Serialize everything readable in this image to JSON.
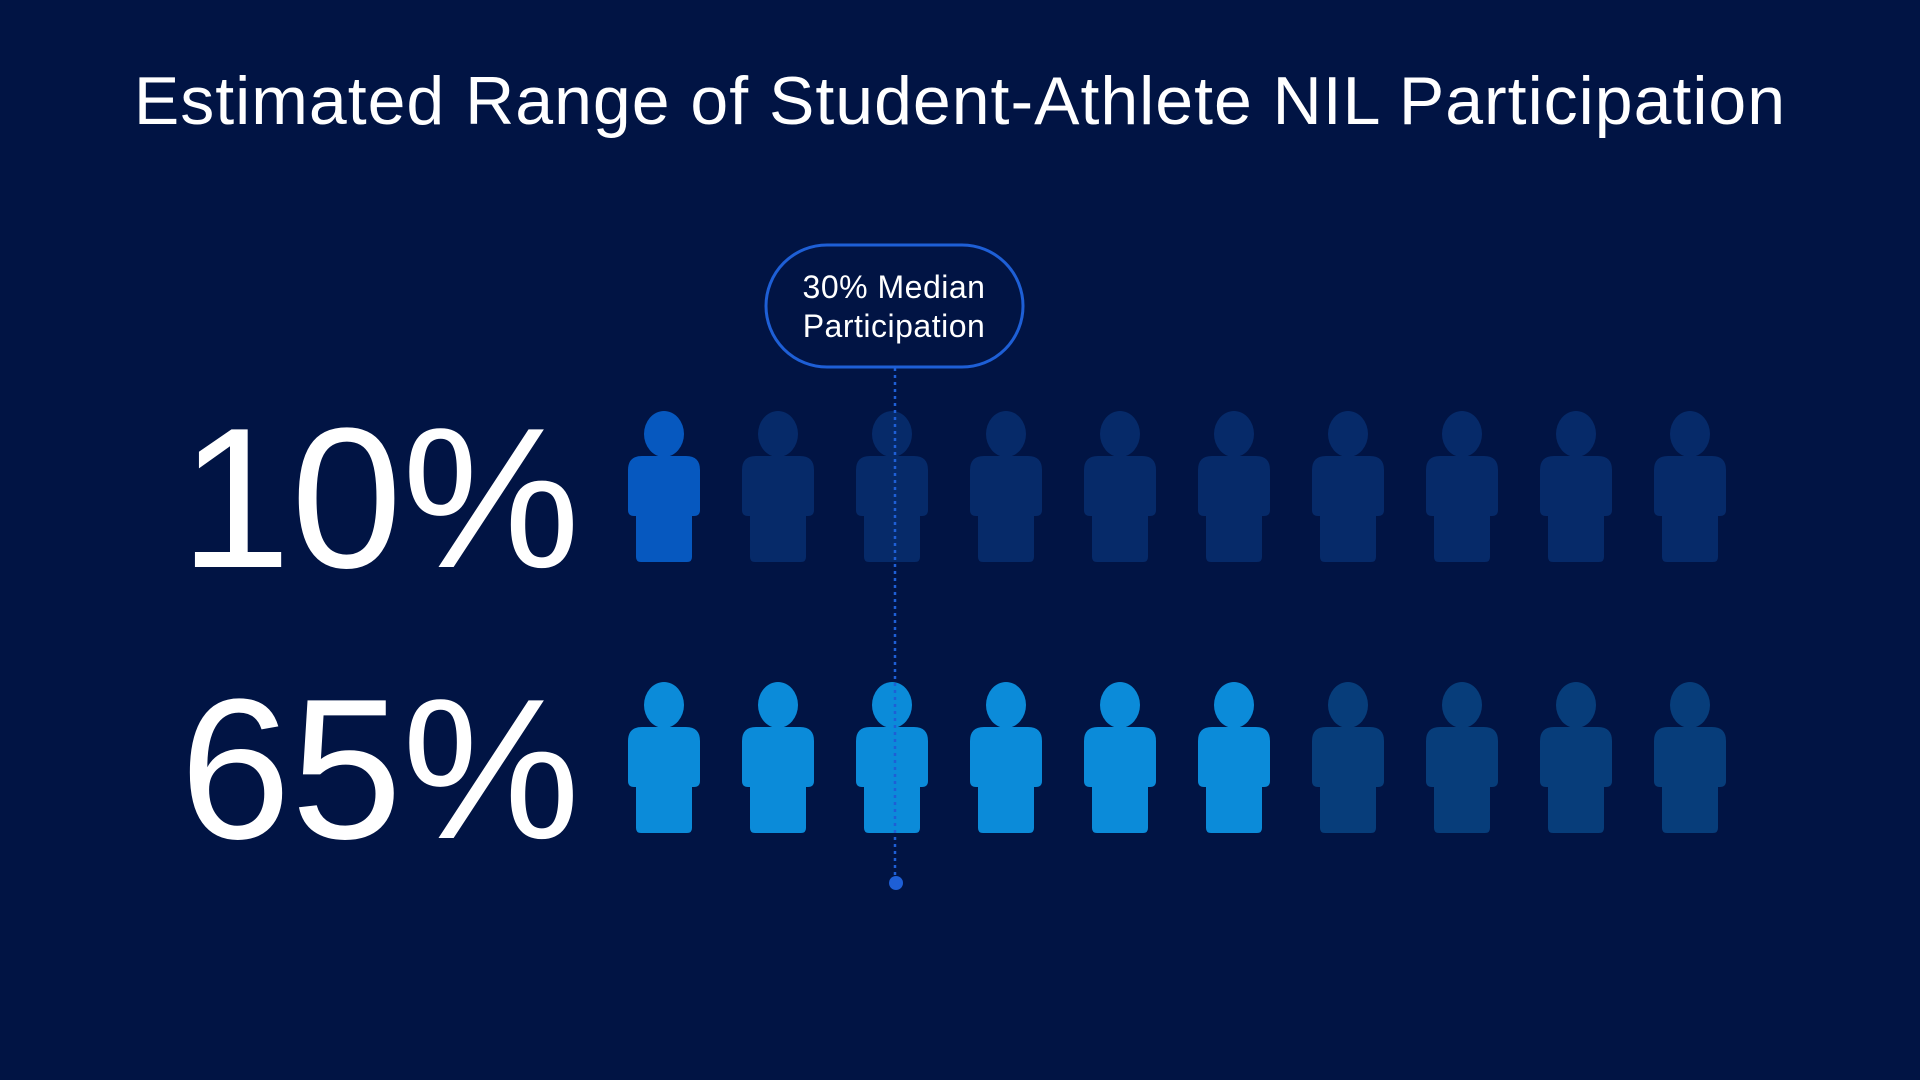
{
  "colors": {
    "background": "#011444",
    "row1_filled": "#0658bf",
    "row1_empty": "#062a69",
    "row2_filled": "#0b8bd9",
    "row2_empty": "#073d7a",
    "median_line": "#1e5fd6",
    "median_pill_border": "#1e5fd6"
  },
  "icon": "person-icon",
  "chart_data": {
    "type": "pictograph",
    "title": "Estimated Range of Student-Athlete NIL Participation",
    "icons_per_row": 10,
    "rows": [
      {
        "label": "10%",
        "value": 10,
        "filled_icons": 1.0
      },
      {
        "label": "65%",
        "value": 65,
        "filled_icons": 6.5
      }
    ],
    "median": {
      "value": 30,
      "label_line1": "30% Median",
      "label_line2": "Participation"
    }
  }
}
